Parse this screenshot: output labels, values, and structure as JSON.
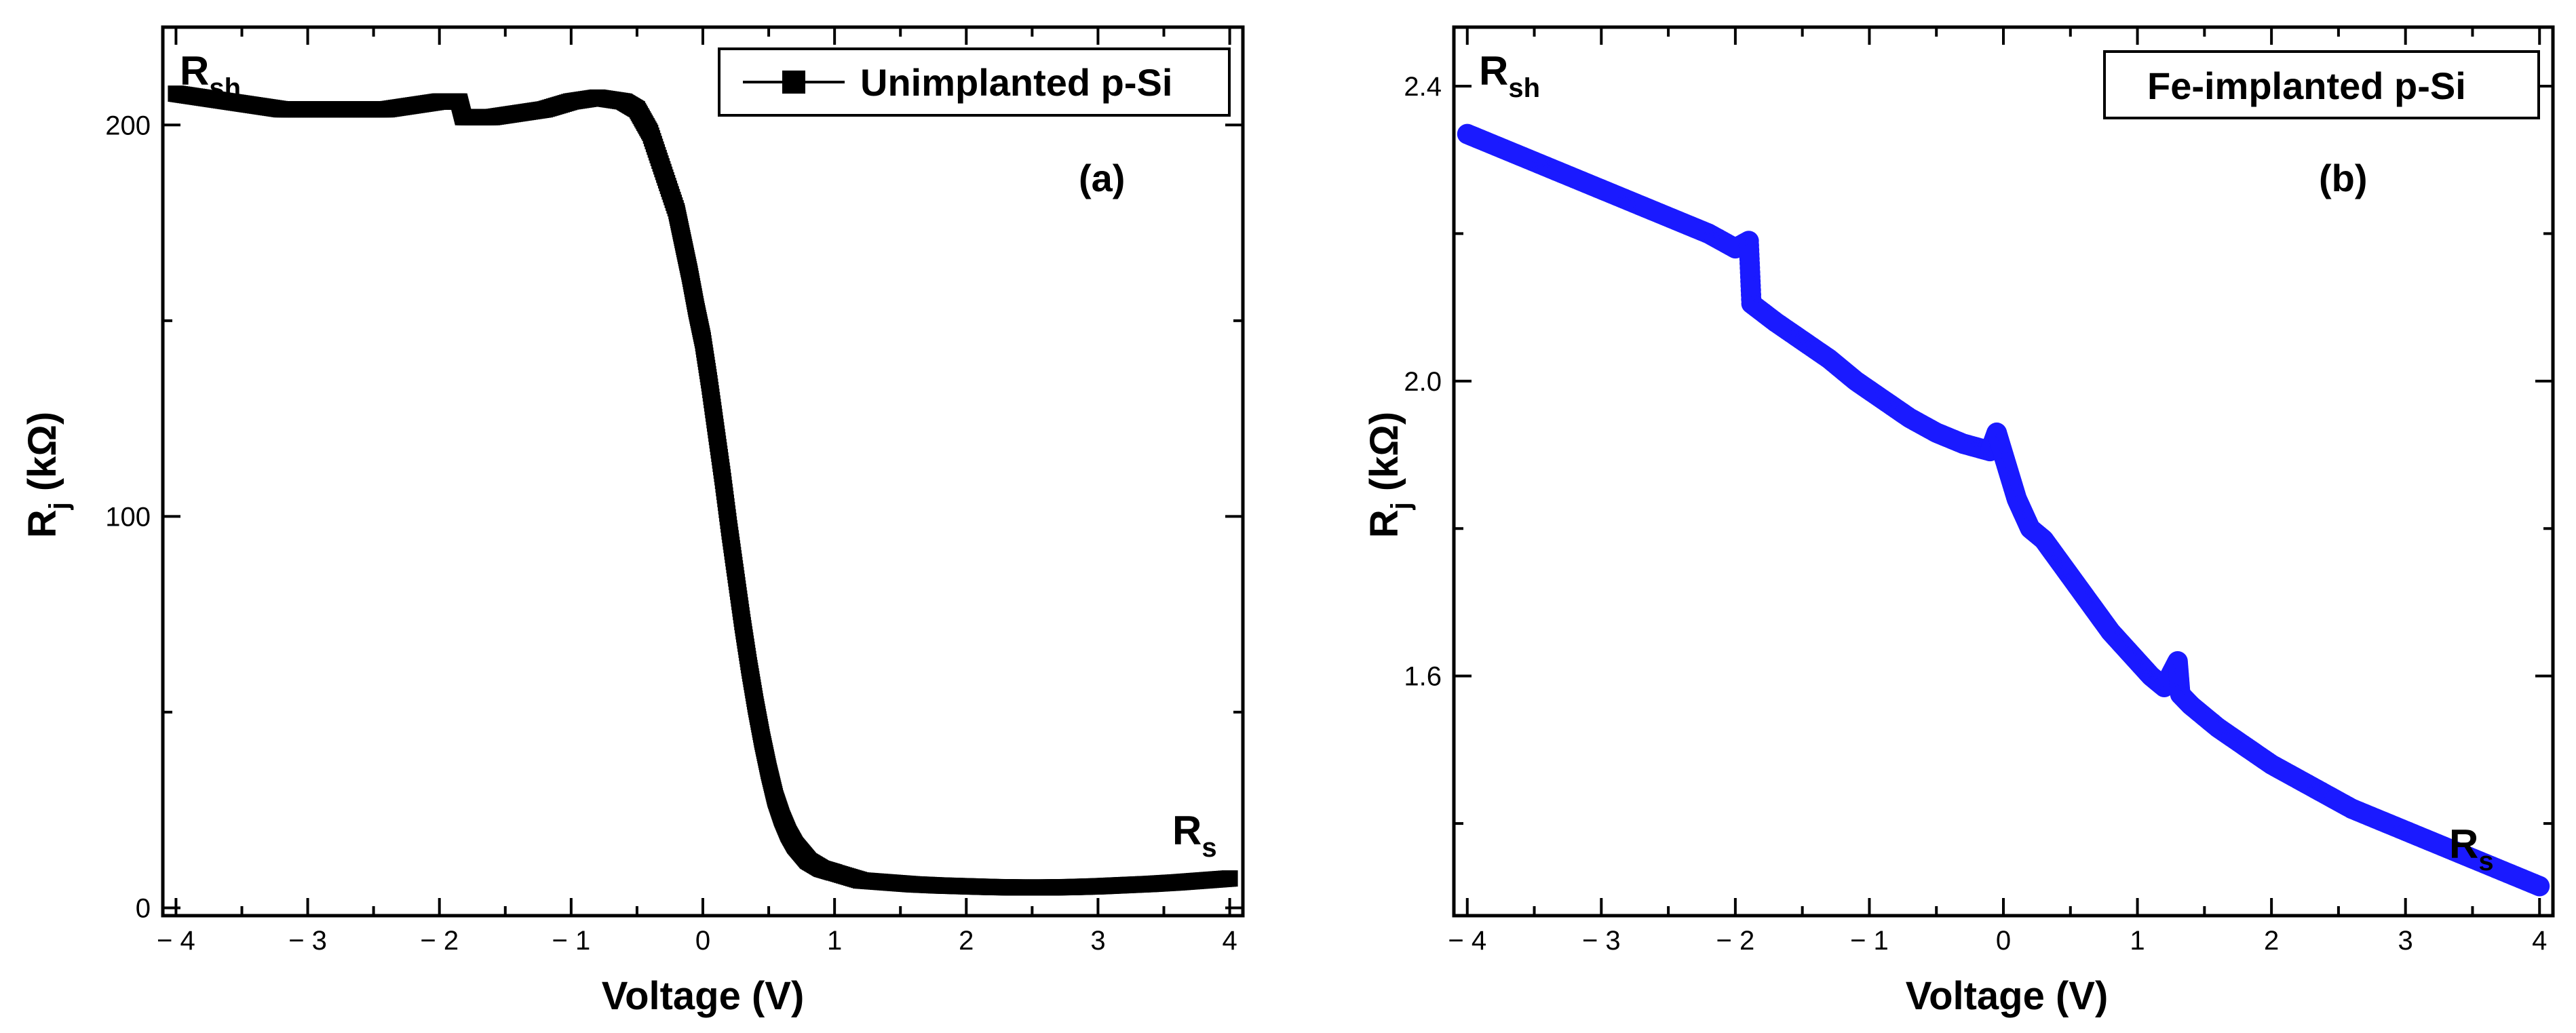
{
  "chart_data": [
    {
      "type": "scatter",
      "panel_label": "(a)",
      "title": "",
      "xlabel": "Voltage (V)",
      "ylabel": "R",
      "ylabel_sub": "j",
      "ylabel_unit": " (kΩ)",
      "xlim": [
        -4.1,
        4.1
      ],
      "ylim": [
        -2,
        225
      ],
      "xticks": [
        -4,
        -3,
        -2,
        -1,
        0,
        1,
        2,
        3,
        4
      ],
      "xtick_labels": [
        "− 4",
        "− 3",
        "− 2",
        "− 1",
        "0",
        "1",
        "2",
        "3",
        "4"
      ],
      "yticks": [
        0,
        100,
        200
      ],
      "ytick_labels": [
        "0",
        "100",
        "200"
      ],
      "legend": [
        "Unimplanted p-Si"
      ],
      "legend_position": "top-right",
      "color": "#000000",
      "marker": "square",
      "annotations": [
        {
          "text": "R",
          "sub": "sh",
          "near": "top-left"
        },
        {
          "text": "R",
          "sub": "s",
          "near": "bottom-right"
        }
      ],
      "series": [
        {
          "name": "Unimplanted p-Si",
          "x": [
            -4.0,
            -3.8,
            -3.6,
            -3.4,
            -3.2,
            -3.0,
            -2.8,
            -2.6,
            -2.4,
            -2.2,
            -2.0,
            -1.85,
            -1.82,
            -1.6,
            -1.4,
            -1.2,
            -1.0,
            -0.8,
            -0.6,
            -0.5,
            -0.4,
            -0.3,
            -0.2,
            -0.15,
            -0.1,
            -0.05,
            0.0,
            0.05,
            0.1,
            0.15,
            0.2,
            0.25,
            0.3,
            0.35,
            0.4,
            0.45,
            0.5,
            0.55,
            0.6,
            0.65,
            0.7,
            0.75,
            0.8,
            0.9,
            1.0,
            1.2,
            1.4,
            1.6,
            1.8,
            2.0,
            2.2,
            2.4,
            2.6,
            2.8,
            3.0,
            3.2,
            3.4,
            3.6,
            3.8,
            4.0
          ],
          "y": [
            208,
            207,
            206,
            205,
            204,
            204,
            204,
            204,
            204,
            205,
            206,
            206,
            202,
            202,
            203,
            204,
            206,
            207,
            206,
            204,
            198,
            188,
            178,
            170,
            162,
            153,
            145,
            134,
            122,
            110,
            97,
            85,
            73,
            62,
            52,
            43,
            35,
            28,
            23,
            19,
            16,
            14,
            12,
            10,
            9,
            7,
            6.5,
            6,
            5.7,
            5.5,
            5.3,
            5.2,
            5.2,
            5.3,
            5.5,
            5.8,
            6.1,
            6.5,
            7.0,
            7.5
          ]
        }
      ]
    },
    {
      "type": "scatter",
      "panel_label": "(b)",
      "title": "",
      "xlabel": "Voltage (V)",
      "ylabel": "R",
      "ylabel_sub": "j",
      "ylabel_unit": " (kΩ)",
      "xlim": [
        -4.1,
        4.1
      ],
      "ylim": [
        1.275,
        2.48
      ],
      "xticks": [
        -4,
        -3,
        -2,
        -1,
        0,
        1,
        2,
        3,
        4
      ],
      "xtick_labels": [
        "− 4",
        "− 3",
        "− 2",
        "− 1",
        "0",
        "1",
        "2",
        "3",
        "4"
      ],
      "yticks": [
        1.6,
        2.0,
        2.4
      ],
      "ytick_labels": [
        "1.6",
        "2.0",
        "2.4"
      ],
      "legend": [
        "Fe-implanted p-Si"
      ],
      "legend_position": "top-right",
      "color": "#1a1aff",
      "marker": "circle",
      "annotations": [
        {
          "text": "R",
          "sub": "sh",
          "near": "top-left"
        },
        {
          "text": "R",
          "sub": "s",
          "near": "bottom-right"
        }
      ],
      "series": [
        {
          "name": "Fe-implanted p-Si",
          "x": [
            -4.0,
            -3.8,
            -3.6,
            -3.4,
            -3.2,
            -3.0,
            -2.8,
            -2.6,
            -2.4,
            -2.2,
            -2.0,
            -1.9,
            -1.88,
            -1.7,
            -1.5,
            -1.3,
            -1.1,
            -0.9,
            -0.7,
            -0.5,
            -0.3,
            -0.1,
            -0.05,
            0.0,
            0.05,
            0.1,
            0.15,
            0.2,
            0.3,
            0.4,
            0.5,
            0.6,
            0.7,
            0.8,
            0.9,
            1.0,
            1.1,
            1.2,
            1.3,
            1.32,
            1.4,
            1.6,
            1.8,
            2.0,
            2.2,
            2.4,
            2.6,
            2.8,
            3.0,
            3.2,
            3.4,
            3.6,
            3.8,
            4.0
          ],
          "y": [
            2.335,
            2.32,
            2.305,
            2.29,
            2.275,
            2.26,
            2.245,
            2.23,
            2.215,
            2.2,
            2.18,
            2.19,
            2.105,
            2.08,
            2.055,
            2.03,
            2.0,
            1.975,
            1.95,
            1.93,
            1.915,
            1.905,
            1.93,
            1.9,
            1.87,
            1.84,
            1.82,
            1.8,
            1.785,
            1.76,
            1.735,
            1.71,
            1.685,
            1.66,
            1.64,
            1.62,
            1.6,
            1.585,
            1.62,
            1.575,
            1.56,
            1.53,
            1.505,
            1.48,
            1.46,
            1.44,
            1.42,
            1.405,
            1.39,
            1.375,
            1.36,
            1.345,
            1.33,
            1.315
          ]
        }
      ]
    }
  ]
}
